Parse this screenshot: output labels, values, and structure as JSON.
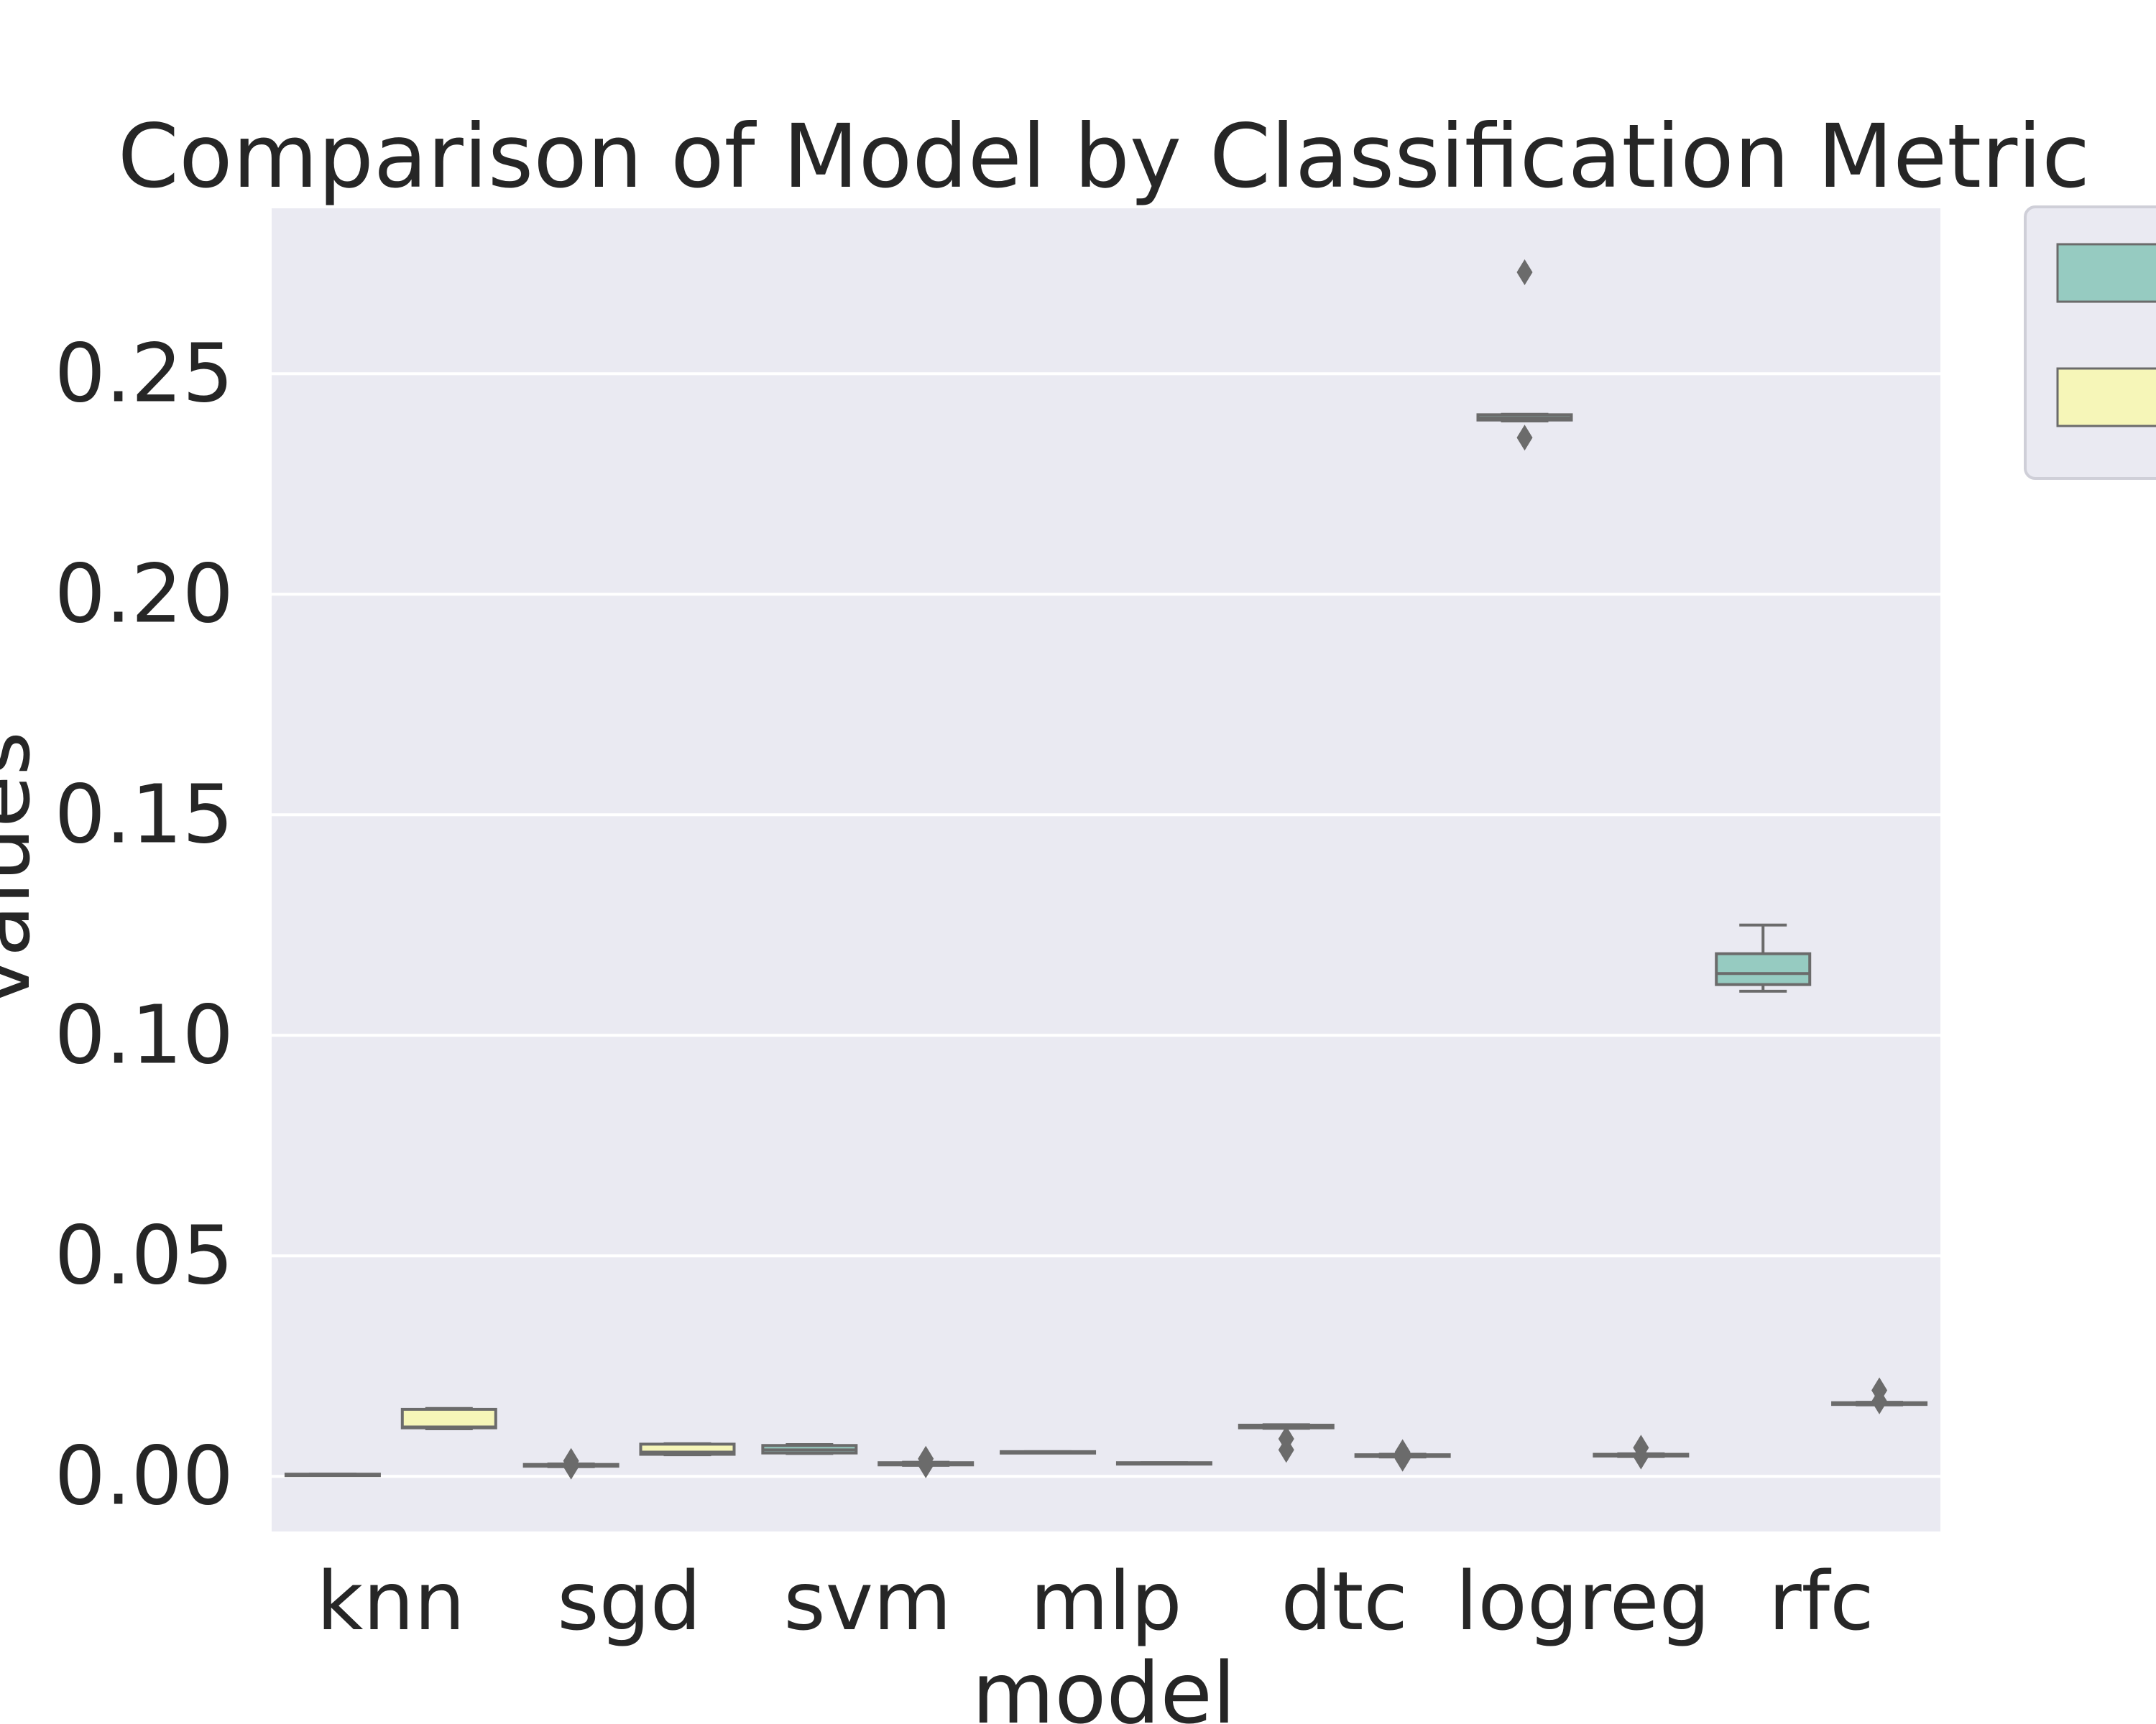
{
  "chart_data": {
    "type": "box",
    "title": "Comparison of Model by Classification Metric",
    "xlabel": "model",
    "ylabel": "values",
    "ylim": [
      -0.0125,
      0.2875
    ],
    "yticks": [
      "0.00",
      "0.05",
      "0.10",
      "0.15",
      "0.20",
      "0.25"
    ],
    "ytick_values": [
      0.0,
      0.05,
      0.1,
      0.15,
      0.2,
      0.25
    ],
    "grid": true,
    "legend": {
      "placement": "upper-right-outside",
      "entries": [
        "",
        ""
      ]
    },
    "categories": [
      "knn",
      "sgd",
      "svm",
      "mlp",
      "dtc",
      "logreg",
      "rfc"
    ],
    "series": [
      {
        "color": "#96cbc1",
        "boxes": [
          {
            "q1": 0.0003,
            "median": 0.0004,
            "q3": 0.0005,
            "whislo": 0.0003,
            "whishi": 0.0005,
            "fliers": []
          },
          {
            "q1": 0.0023,
            "median": 0.0025,
            "q3": 0.0027,
            "whislo": 0.0022,
            "whishi": 0.0028,
            "fliers": [
              0.0035,
              0.0022
            ]
          },
          {
            "q1": 0.0053,
            "median": 0.006,
            "q3": 0.007,
            "whislo": 0.0052,
            "whishi": 0.0072,
            "fliers": []
          },
          {
            "q1": 0.0054,
            "median": 0.0055,
            "q3": 0.0056,
            "whislo": 0.0054,
            "whishi": 0.0056,
            "fliers": []
          },
          {
            "q1": 0.011,
            "median": 0.0113,
            "q3": 0.0116,
            "whislo": 0.0109,
            "whishi": 0.0117,
            "fliers": [
              0.0085,
              0.006
            ]
          },
          {
            "q1": 0.2395,
            "median": 0.24,
            "q3": 0.2407,
            "whislo": 0.2393,
            "whishi": 0.2408,
            "fliers": [
              0.273,
              0.2355
            ]
          },
          {
            "q1": 0.1115,
            "median": 0.114,
            "q3": 0.1185,
            "whislo": 0.11,
            "whishi": 0.125,
            "fliers": []
          }
        ]
      },
      {
        "color": "#f6f6b8",
        "boxes": [
          {
            "q1": 0.011,
            "median": 0.0112,
            "q3": 0.0152,
            "whislo": 0.0108,
            "whishi": 0.0154,
            "fliers": []
          },
          {
            "q1": 0.005,
            "median": 0.0055,
            "q3": 0.0073,
            "whislo": 0.0049,
            "whishi": 0.0074,
            "fliers": []
          },
          {
            "q1": 0.0026,
            "median": 0.0028,
            "q3": 0.0031,
            "whislo": 0.0025,
            "whishi": 0.0032,
            "fliers": [
              0.004,
              0.0025
            ]
          },
          {
            "q1": 0.0029,
            "median": 0.003,
            "q3": 0.0031,
            "whislo": 0.0029,
            "whishi": 0.0031,
            "fliers": []
          },
          {
            "q1": 0.0045,
            "median": 0.0047,
            "q3": 0.0049,
            "whislo": 0.0044,
            "whishi": 0.005,
            "fliers": [
              0.0055,
              0.004
            ]
          },
          {
            "q1": 0.0046,
            "median": 0.0048,
            "q3": 0.005,
            "whislo": 0.0045,
            "whishi": 0.0051,
            "fliers": [
              0.0065,
              0.0045
            ]
          },
          {
            "q1": 0.0163,
            "median": 0.0165,
            "q3": 0.0167,
            "whislo": 0.0162,
            "whishi": 0.0168,
            "fliers": [
              0.0195,
              0.017
            ]
          }
        ]
      }
    ]
  }
}
